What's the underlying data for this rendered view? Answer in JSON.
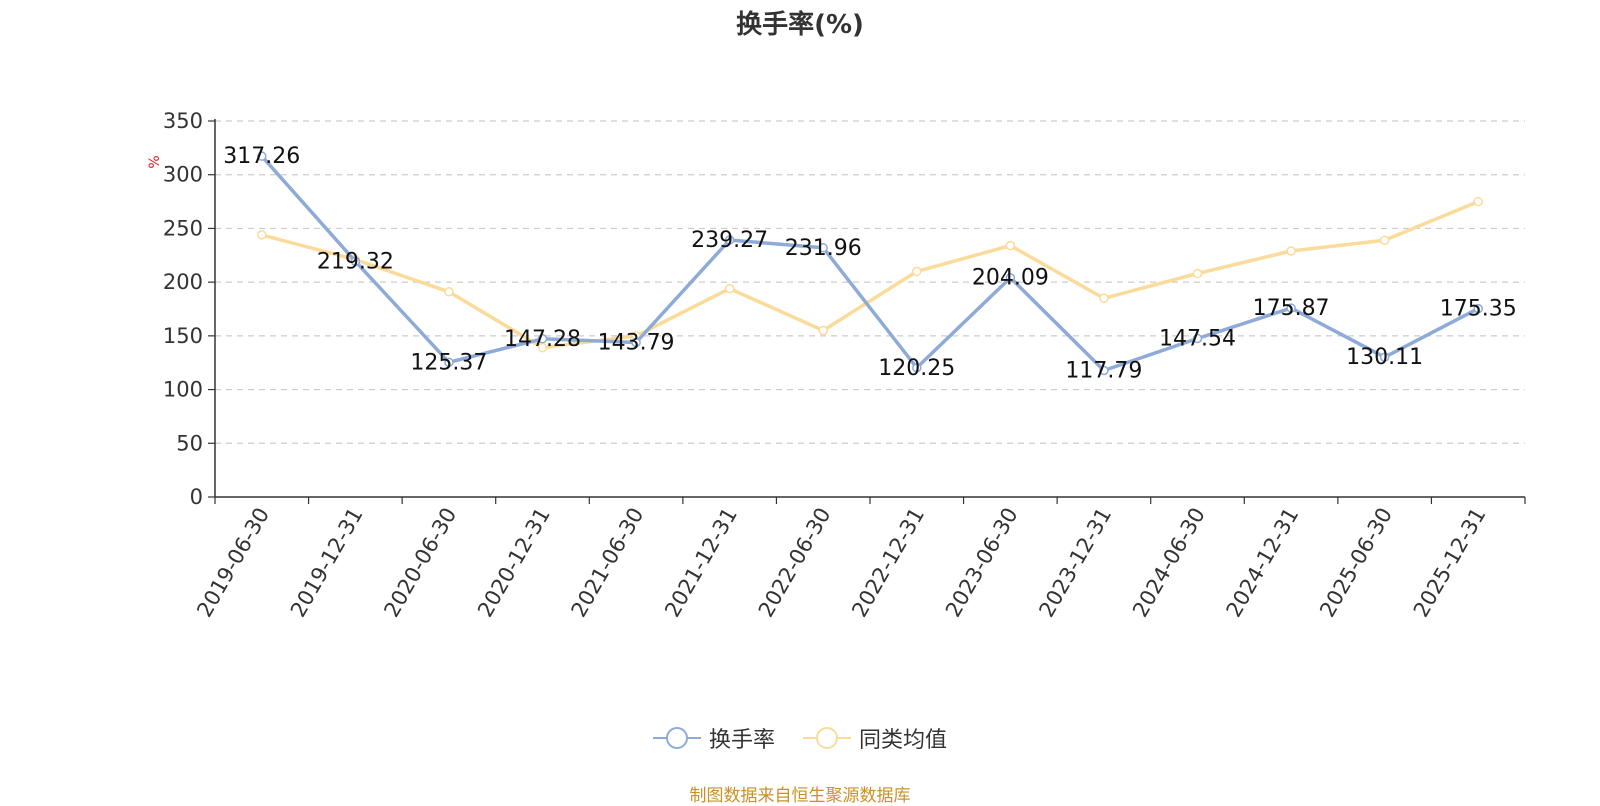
{
  "chart_data": {
    "type": "line",
    "title": "换手率(%)",
    "ylabel": "%",
    "ylim": [
      0,
      350
    ],
    "yticks": [
      0,
      50,
      100,
      150,
      200,
      250,
      300,
      350
    ],
    "grid": true,
    "legend_position": "bottom-center",
    "categories": [
      "2019-06-30",
      "2019-12-31",
      "2020-06-30",
      "2020-12-31",
      "2021-06-30",
      "2021-12-31",
      "2022-06-30",
      "2022-12-31",
      "2023-06-30",
      "2023-12-31",
      "2024-06-30",
      "2024-12-31",
      "2025-06-30",
      "2025-12-31"
    ],
    "series": [
      {
        "name": "换手率",
        "color": "#8eaad8",
        "values": [
          317.26,
          219.32,
          125.37,
          147.28,
          143.79,
          239.27,
          231.96,
          120.25,
          204.09,
          117.79,
          147.54,
          175.87,
          130.11,
          175.35
        ],
        "labels": [
          "317.26",
          "219.32",
          "125.37",
          "147.28",
          "143.79",
          "239.27",
          "231.96",
          "120.25",
          "204.09",
          "117.79",
          "147.54",
          "175.87",
          "130.11",
          "175.35"
        ]
      },
      {
        "name": "同类均值",
        "color": "#fbdb9a",
        "values": [
          244,
          221,
          191,
          139,
          150,
          194,
          155,
          210,
          234,
          185,
          208,
          229,
          239,
          275
        ]
      }
    ]
  },
  "footer": {
    "source_text": "制图数据来自恒生聚源数据库"
  }
}
